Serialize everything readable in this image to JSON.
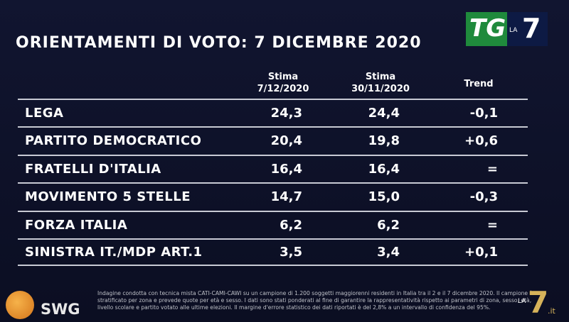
{
  "logo": {
    "tg": "TG",
    "la": "LA",
    "seven": "7"
  },
  "title": "ORIENTAMENTI DI VOTO: 7 DICEMBRE 2020",
  "table": {
    "headers": [
      [
        "Stima",
        "7/12/2020"
      ],
      [
        "Stima",
        "30/11/2020"
      ],
      [
        "Trend"
      ]
    ],
    "rows": [
      [
        "LEGA",
        "24,3",
        "24,4",
        "-0,1"
      ],
      [
        "PARTITO DEMOCRATICO",
        "20,4",
        "19,8",
        "+0,6"
      ],
      [
        "FRATELLI D'ITALIA",
        "16,4",
        "16,4",
        "="
      ],
      [
        "MOVIMENTO 5 STELLE",
        "14,7",
        "15,0",
        "-0,3"
      ],
      [
        "FORZA ITALIA",
        "6,2",
        "6,2",
        "="
      ],
      [
        "SINISTRA IT./MDP ART.1",
        "3,5",
        "3,4",
        "+0,1"
      ]
    ]
  },
  "footer": {
    "brand": "SWG",
    "note": "Indagine condotta con tecnica mista CATI-CAMI-CAWI su un campione di 1.200 soggetti maggiorenni residenti in Italia tra il 2 e il 7 dicembre 2020. Il campione è stratificato per zona e prevede quote per età e sesso. I dati sono stati ponderati al fine di garantire la rappresentatività rispetto ai parametri di zona, sesso, età, livello scolare e partito votato alle ultime elezioni. Il margine d'errore statistico dei dati riportati è del 2,8% a un intervallo di confidenza del 95%.",
    "corner_la": "LA",
    "corner_seven": "7",
    "corner_it": ".it"
  }
}
